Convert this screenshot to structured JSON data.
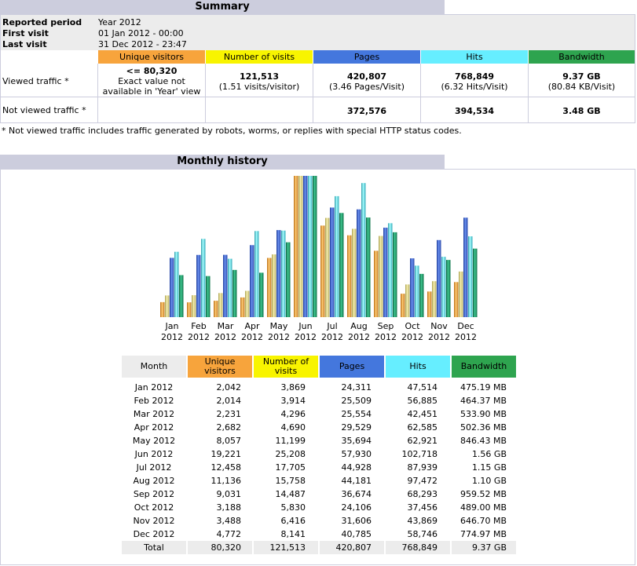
{
  "summary": {
    "title": "Summary",
    "reported_period_label": "Reported period",
    "reported_period_value": "Year 2012",
    "first_visit_label": "First visit",
    "first_visit_value": "01 Jan 2012 - 00:00",
    "last_visit_label": "Last visit",
    "last_visit_value": "31 Dec 2012 - 23:47",
    "columns": [
      "Unique visitors",
      "Number of visits",
      "Pages",
      "Hits",
      "Bandwidth"
    ],
    "viewed": {
      "label": "Viewed traffic *",
      "unique_main": "<= 80,320",
      "unique_note1": "Exact value not",
      "unique_note2": "available in 'Year' view",
      "visits_main": "121,513",
      "visits_sub": "(1.51 visits/visitor)",
      "pages_main": "420,807",
      "pages_sub": "(3.46 Pages/Visit)",
      "hits_main": "768,849",
      "hits_sub": "(6.32 Hits/Visit)",
      "bandwidth_main": "9.37 GB",
      "bandwidth_sub": "(80.84 KB/Visit)"
    },
    "not_viewed": {
      "label": "Not viewed traffic *",
      "pages": "372,576",
      "hits": "394,534",
      "bandwidth": "3.48 GB"
    },
    "footnote": "* Not viewed traffic includes traffic generated by robots, worms, or replies with special HTTP status codes."
  },
  "history": {
    "title": "Monthly history",
    "table_headers": {
      "month": "Month",
      "unique1": "Unique",
      "unique2": "visitors",
      "visits1": "Number of",
      "visits2": "visits",
      "pages": "Pages",
      "hits": "Hits",
      "bandwidth": "Bandwidth"
    },
    "rows": [
      {
        "month": "Jan 2012",
        "unique": "2,042",
        "visits": "3,869",
        "pages": "24,311",
        "hits": "47,514",
        "bandwidth": "475.19 MB"
      },
      {
        "month": "Feb 2012",
        "unique": "2,014",
        "visits": "3,914",
        "pages": "25,509",
        "hits": "56,885",
        "bandwidth": "464.37 MB"
      },
      {
        "month": "Mar 2012",
        "unique": "2,231",
        "visits": "4,296",
        "pages": "25,554",
        "hits": "42,451",
        "bandwidth": "533.90 MB"
      },
      {
        "month": "Apr 2012",
        "unique": "2,682",
        "visits": "4,690",
        "pages": "29,529",
        "hits": "62,585",
        "bandwidth": "502.36 MB"
      },
      {
        "month": "May 2012",
        "unique": "8,057",
        "visits": "11,199",
        "pages": "35,694",
        "hits": "62,921",
        "bandwidth": "846.43 MB"
      },
      {
        "month": "Jun 2012",
        "unique": "19,221",
        "visits": "25,208",
        "pages": "57,930",
        "hits": "102,718",
        "bandwidth": "1.56 GB"
      },
      {
        "month": "Jul 2012",
        "unique": "12,458",
        "visits": "17,705",
        "pages": "44,928",
        "hits": "87,939",
        "bandwidth": "1.15 GB"
      },
      {
        "month": "Aug 2012",
        "unique": "11,136",
        "visits": "15,758",
        "pages": "44,181",
        "hits": "97,472",
        "bandwidth": "1.10 GB"
      },
      {
        "month": "Sep 2012",
        "unique": "9,031",
        "visits": "14,487",
        "pages": "36,674",
        "hits": "68,293",
        "bandwidth": "959.52 MB"
      },
      {
        "month": "Oct 2012",
        "unique": "3,188",
        "visits": "5,830",
        "pages": "24,106",
        "hits": "37,456",
        "bandwidth": "489.00 MB"
      },
      {
        "month": "Nov 2012",
        "unique": "3,488",
        "visits": "6,416",
        "pages": "31,606",
        "hits": "43,869",
        "bandwidth": "646.70 MB"
      },
      {
        "month": "Dec 2012",
        "unique": "4,772",
        "visits": "8,141",
        "pages": "40,785",
        "hits": "58,746",
        "bandwidth": "774.97 MB"
      }
    ],
    "total": {
      "month": "Total",
      "unique": "80,320",
      "visits": "121,513",
      "pages": "420,807",
      "hits": "768,849",
      "bandwidth": "9.37 GB"
    }
  },
  "colors": {
    "unique": "#f7a43c",
    "visits": "#f8f400",
    "pages": "#4477dd",
    "hits": "#66eeff",
    "bandwidth": "#2ea44f",
    "header_bg": "#cccddd",
    "panel_bg": "#ececec"
  },
  "chart_data": {
    "type": "bar",
    "categories": [
      "Jan 2012",
      "Feb 2012",
      "Mar 2012",
      "Apr 2012",
      "May 2012",
      "Jun 2012",
      "Jul 2012",
      "Aug 2012",
      "Sep 2012",
      "Oct 2012",
      "Nov 2012",
      "Dec 2012"
    ],
    "tick_top": [
      "Jan",
      "Feb",
      "Mar",
      "Apr",
      "May",
      "Jun",
      "Jul",
      "Aug",
      "Sep",
      "Oct",
      "Nov",
      "Dec"
    ],
    "tick_bottom": [
      "2012",
      "2012",
      "2012",
      "2012",
      "2012",
      "2012",
      "2012",
      "2012",
      "2012",
      "2012",
      "2012",
      "2012"
    ],
    "series": [
      {
        "key": "unique",
        "values": [
          2042,
          2014,
          2231,
          2682,
          8057,
          19221,
          12458,
          11136,
          9031,
          3188,
          3488,
          4772
        ]
      },
      {
        "key": "visits",
        "values": [
          3869,
          3914,
          4296,
          4690,
          11199,
          25208,
          17705,
          15758,
          14487,
          5830,
          6416,
          8141
        ]
      },
      {
        "key": "pages",
        "values": [
          24311,
          25509,
          25554,
          29529,
          35694,
          57930,
          44928,
          44181,
          36674,
          24106,
          31606,
          40785
        ]
      },
      {
        "key": "hits",
        "values": [
          47514,
          56885,
          42451,
          62585,
          62921,
          102718,
          87939,
          97472,
          68293,
          37456,
          43869,
          58746
        ]
      },
      {
        "key": "bandwidth",
        "values": [
          475.19,
          464.37,
          533.9,
          502.36,
          846.43,
          1597.44,
          1177.6,
          1126.4,
          959.52,
          489.0,
          646.7,
          774.97
        ]
      }
    ],
    "legend": "none",
    "grid": false
  }
}
